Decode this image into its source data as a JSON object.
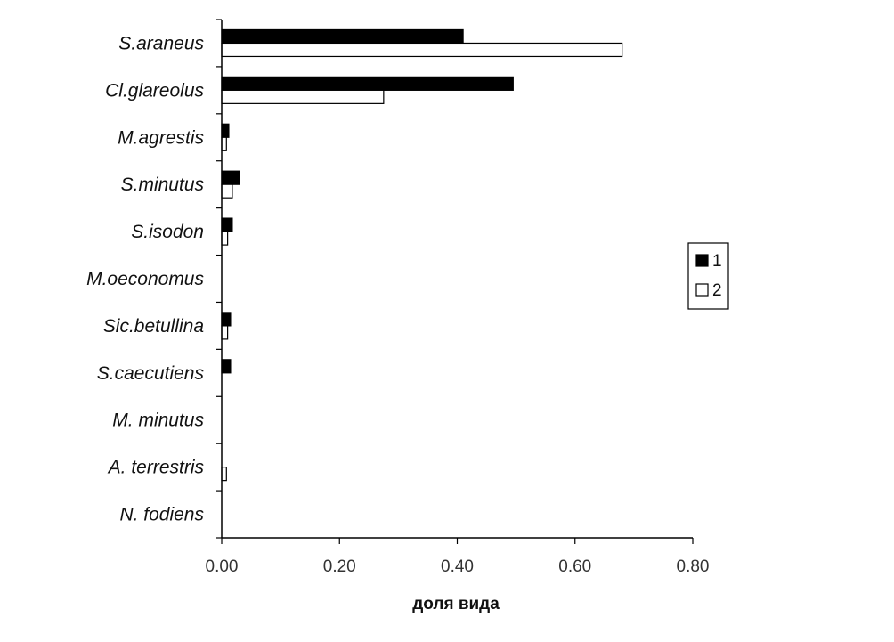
{
  "chart_data": {
    "type": "bar",
    "orientation": "horizontal",
    "categories": [
      "S.araneus",
      "Cl.glareolus",
      "M.agrestis",
      "S.minutus",
      "S.isodon",
      "M.oeconomus",
      "Sic.betullina",
      "S.caecutiens",
      "M. minutus",
      "A. terrestris",
      "N. fodiens"
    ],
    "series": [
      {
        "name": "1",
        "color": "#000000",
        "values": [
          0.41,
          0.495,
          0.012,
          0.03,
          0.018,
          0.0,
          0.015,
          0.015,
          0.0,
          0.0,
          0.0
        ]
      },
      {
        "name": "2",
        "color": "#ffffff",
        "values": [
          0.68,
          0.275,
          0.008,
          0.018,
          0.01,
          0.0,
          0.01,
          0.0,
          0.0,
          0.008,
          0.0
        ]
      }
    ],
    "xlabel": "доля вида",
    "ylabel": "",
    "title": "",
    "xlim": [
      0.0,
      0.8
    ],
    "xticks": [
      "0.00",
      "0.20",
      "0.40",
      "0.60",
      "0.80"
    ],
    "grid": false,
    "legend_position": "right"
  }
}
